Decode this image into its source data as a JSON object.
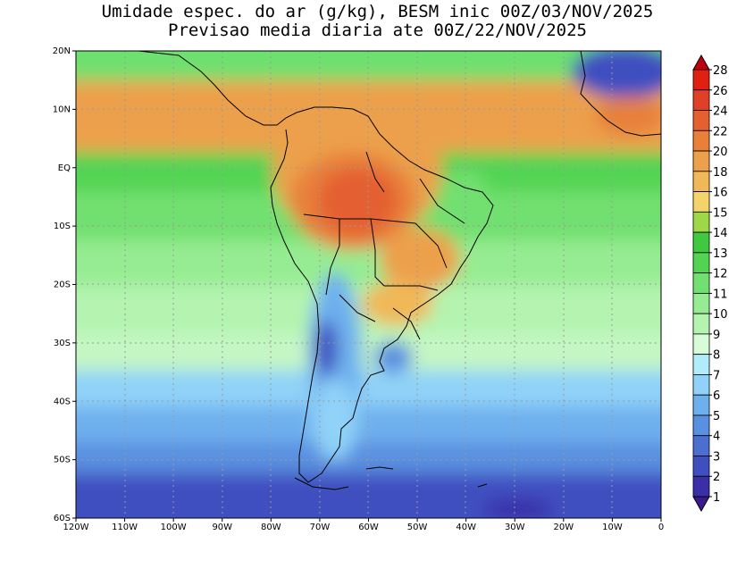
{
  "title": {
    "line1": "Umidade espec. do ar (g/kg), BESM inic 00Z/03/NOV/2025",
    "line2": "Previsao media diaria ate 00Z/22/NOV/2025"
  },
  "map": {
    "lat_range": [
      -60,
      20
    ],
    "lon_range": [
      -120,
      0
    ],
    "lat_ticks": [
      "20N",
      "10N",
      "EQ",
      "10S",
      "20S",
      "30S",
      "40S",
      "50S",
      "60S"
    ],
    "lon_ticks": [
      "120W",
      "110W",
      "100W",
      "90W",
      "80W",
      "70W",
      "60W",
      "50W",
      "40W",
      "30W",
      "20W",
      "10W",
      "0"
    ]
  },
  "colorbar": {
    "levels": [
      "1",
      "2",
      "3",
      "4",
      "5",
      "6",
      "7",
      "8",
      "9",
      "10",
      "11",
      "12",
      "13",
      "14",
      "15",
      "16",
      "18",
      "20",
      "22",
      "24",
      "26",
      "28"
    ],
    "colors": [
      "#3a1a8c",
      "#3b2fa8",
      "#3f4fc0",
      "#4a6fd0",
      "#5a90e0",
      "#6eb0ee",
      "#90d2f8",
      "#b0ecfa",
      "#d8fcd8",
      "#b4f4b0",
      "#96ec92",
      "#72e070",
      "#52d452",
      "#40c840",
      "#9ed848",
      "#f2d46a",
      "#f0b858",
      "#eca04c",
      "#e8803a",
      "#e46030",
      "#e04028",
      "#e02010",
      "#c00010"
    ]
  }
}
